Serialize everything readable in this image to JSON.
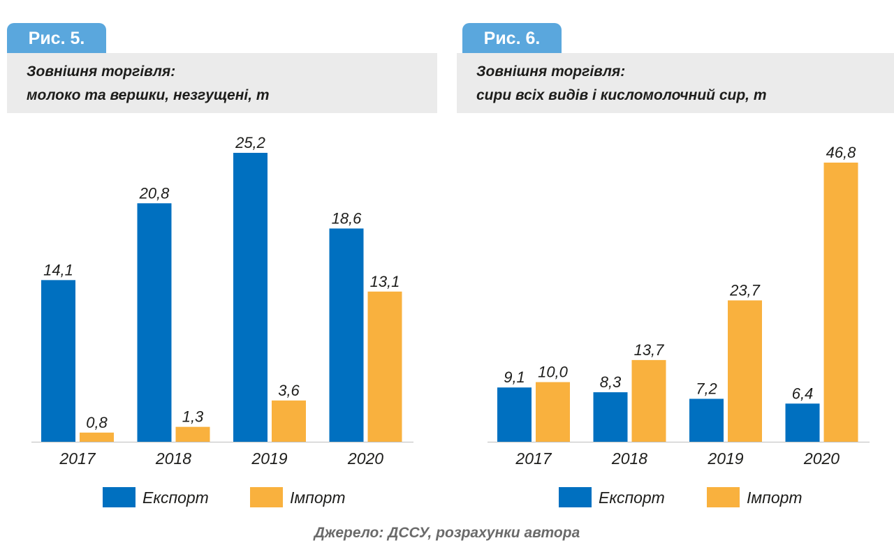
{
  "figures": [
    {
      "fig_label": "Рис. 5.",
      "title_line1": "Зовнішня торгівля:",
      "title_line2": "молоко та вершки, незгущені, т"
    },
    {
      "fig_label": "Рис. 6.",
      "title_line1": "Зовнішня торгівля:",
      "title_line2": "сири всіх видів і кисломолочний сир, т"
    }
  ],
  "source": "Джерело: ДССУ, розрахунки автора",
  "colors": {
    "export": "#0070c0",
    "import": "#f9b13e",
    "tab": "#5aa7dd",
    "title_bg": "#ebebeb"
  },
  "chart_data": [
    {
      "type": "bar",
      "title": "Зовнішня торгівля: молоко та вершки, незгущені, т",
      "categories": [
        "2017",
        "2018",
        "2019",
        "2020"
      ],
      "series": [
        {
          "name": "Експорт",
          "values": [
            14.1,
            20.8,
            25.2,
            18.6
          ],
          "labels": [
            "14,1",
            "20,8",
            "25,2",
            "18,6"
          ]
        },
        {
          "name": "Імпорт",
          "values": [
            0.8,
            1.3,
            3.6,
            13.1
          ],
          "labels": [
            "0,8",
            "1,3",
            "3,6",
            "13,1"
          ]
        }
      ],
      "ylim": [
        0,
        25.2
      ],
      "grid": false,
      "legend": "bottom"
    },
    {
      "type": "bar",
      "title": "Зовнішня торгівля: сири всіх видів і кисломолочний сир, т",
      "categories": [
        "2017",
        "2018",
        "2019",
        "2020"
      ],
      "series": [
        {
          "name": "Експорт",
          "values": [
            9.1,
            8.3,
            7.2,
            6.4
          ],
          "labels": [
            "9,1",
            "8,3",
            "7,2",
            "6,4"
          ]
        },
        {
          "name": "Імпорт",
          "values": [
            10.0,
            13.7,
            23.7,
            46.8
          ],
          "labels": [
            "10,0",
            "13,7",
            "23,7",
            "46,8"
          ]
        }
      ],
      "ylim": [
        0,
        46.8
      ],
      "grid": false,
      "legend": "bottom"
    }
  ]
}
